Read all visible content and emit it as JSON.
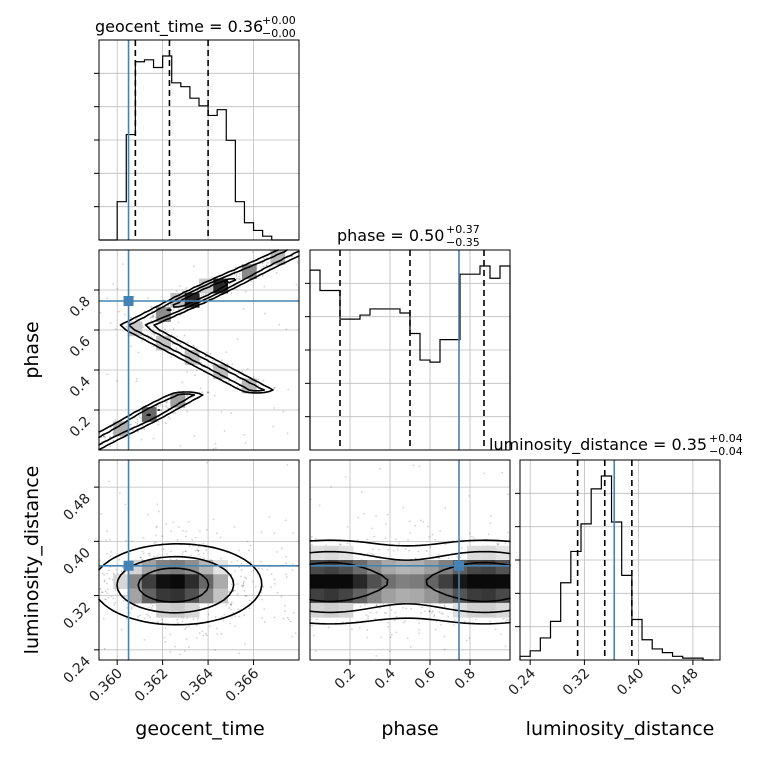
{
  "chart_data": {
    "type": "corner",
    "parameters": [
      "geocent_time",
      "phase",
      "luminosity_distance"
    ],
    "truth_color": "#4682b4",
    "truths": {
      "geocent_time": 0.3605,
      "phase": 0.745,
      "luminosity_distance": 0.364
    },
    "titles": [
      {
        "param": "geocent_time",
        "main": "geocent_time = 0.36",
        "plus": "+0.00",
        "minus": "−0.00"
      },
      {
        "param": "phase",
        "main": "phase = 0.50",
        "plus": "+0.37",
        "minus": "−0.35"
      },
      {
        "param": "luminosity_distance",
        "main": "luminosity_distance = 0.35",
        "plus": "+0.04",
        "minus": "−0.04"
      }
    ],
    "axes": {
      "geocent_time": {
        "range": [
          0.3592,
          0.368
        ],
        "ticks": [
          0.36,
          0.362,
          0.364,
          0.366
        ],
        "tick_labels": [
          "0.360",
          "0.362",
          "0.364",
          "0.366"
        ]
      },
      "phase": {
        "range": [
          0.0,
          1.0
        ],
        "ticks": [
          0.2,
          0.4,
          0.6,
          0.8
        ],
        "tick_labels": [
          "0.2",
          "0.4",
          "0.6",
          "0.8"
        ]
      },
      "luminosity_distance": {
        "range": [
          0.225,
          0.52
        ],
        "ticks": [
          0.24,
          0.32,
          0.4,
          0.48
        ],
        "tick_labels": [
          "0.24",
          "0.32",
          "0.40",
          "0.48"
        ]
      }
    },
    "histograms": {
      "geocent_time": {
        "edges": [
          0.3592,
          0.36,
          0.3604,
          0.3608,
          0.3612,
          0.3616,
          0.362,
          0.3624,
          0.3628,
          0.3632,
          0.3636,
          0.364,
          0.3644,
          0.3648,
          0.3652,
          0.3656,
          0.366,
          0.3664,
          0.3668,
          0.368
        ],
        "counts": [
          0,
          0.2,
          0.55,
          0.93,
          0.94,
          0.9,
          0.96,
          0.82,
          0.8,
          0.74,
          0.7,
          0.65,
          0.68,
          0.52,
          0.2,
          0.09,
          0.05,
          0.02,
          0.0
        ]
      },
      "phase": {
        "edges": [
          0.0,
          0.05,
          0.15,
          0.25,
          0.3,
          0.45,
          0.5,
          0.55,
          0.6,
          0.65,
          0.75,
          0.8,
          0.85,
          0.9,
          0.95,
          1.0
        ],
        "counts": [
          0.88,
          0.78,
          0.64,
          0.66,
          0.69,
          0.67,
          0.57,
          0.44,
          0.43,
          0.54,
          0.86,
          0.86,
          0.9,
          0.84,
          0.9
        ]
      },
      "luminosity_distance": {
        "edges": [
          0.225,
          0.24,
          0.255,
          0.27,
          0.285,
          0.3,
          0.315,
          0.33,
          0.345,
          0.36,
          0.375,
          0.39,
          0.405,
          0.42,
          0.435,
          0.45,
          0.465,
          0.48,
          0.495,
          0.51
        ],
        "counts": [
          0.02,
          0.05,
          0.12,
          0.21,
          0.42,
          0.59,
          0.74,
          0.93,
          1.0,
          0.75,
          0.46,
          0.22,
          0.11,
          0.06,
          0.04,
          0.02,
          0.01,
          0.01,
          0.0
        ]
      }
    },
    "quantiles": {
      "geocent_time": [
        0.3608,
        0.3623,
        0.364
      ],
      "phase": [
        0.15,
        0.5,
        0.87
      ],
      "luminosity_distance": [
        0.31,
        0.35,
        0.39
      ]
    },
    "panels": [
      {
        "row": 1,
        "col": 0,
        "x": "geocent_time",
        "y": "phase"
      },
      {
        "row": 2,
        "col": 0,
        "x": "geocent_time",
        "y": "luminosity_distance"
      },
      {
        "row": 2,
        "col": 1,
        "x": "phase",
        "y": "luminosity_distance"
      }
    ],
    "grid": true
  }
}
